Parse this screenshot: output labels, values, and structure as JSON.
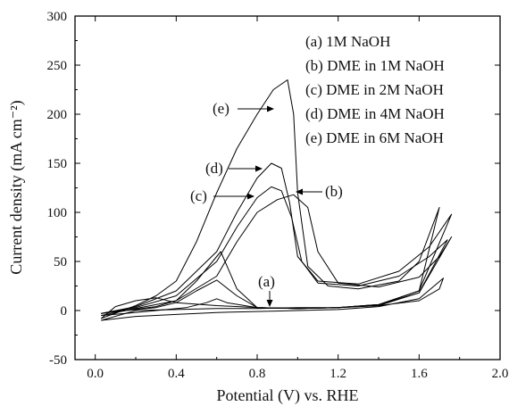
{
  "chart_data": {
    "type": "line",
    "xlabel": "Potential (V) vs. RHE",
    "ylabel": "Current density (mA cm⁻²)",
    "xlim": [
      -0.1,
      2.0
    ],
    "ylim": [
      -50,
      300
    ],
    "xticks": [
      "0.0",
      "0.4",
      "0.8",
      "1.2",
      "1.6",
      "2.0"
    ],
    "xtick_values": [
      0.0,
      0.4,
      0.8,
      1.2,
      1.6,
      2.0
    ],
    "yticks": [
      "-50",
      "0",
      "50",
      "100",
      "150",
      "200",
      "250",
      "300"
    ],
    "ytick_values": [
      -50,
      0,
      50,
      100,
      150,
      200,
      250,
      300
    ],
    "grid": false,
    "legend_position": "top-right",
    "legend": [
      "(a) 1M NaOH",
      "(b) DME in 1M NaOH",
      "(c) DME in 2M NaOH",
      "(d) DME in 4M NaOH",
      "(e) DME in 6M NaOH"
    ],
    "series": [
      {
        "label": "(a)",
        "x": [
          0.03,
          0.2,
          0.4,
          0.6,
          0.8,
          1.0,
          1.2,
          1.4,
          1.6,
          1.7,
          1.72,
          1.6,
          1.4,
          1.2,
          1.0,
          0.8,
          0.6,
          0.4,
          0.2,
          0.03
        ],
        "y": [
          -10,
          0,
          1,
          2,
          2,
          3,
          3,
          5,
          10,
          22,
          33,
          12,
          4,
          1,
          0,
          -1,
          -2,
          -4,
          -6,
          -10
        ]
      },
      {
        "label": "(b)",
        "x": [
          0.03,
          0.2,
          0.4,
          0.6,
          0.7,
          0.8,
          0.9,
          0.98,
          1.05,
          1.1,
          1.2,
          1.4,
          1.6,
          1.7,
          1.76,
          1.6,
          1.4,
          1.2,
          1.0,
          0.8,
          0.65,
          0.6,
          0.55,
          0.45,
          0.3,
          0.15,
          0.03
        ],
        "y": [
          -5,
          2,
          10,
          35,
          70,
          100,
          113,
          118,
          105,
          60,
          28,
          24,
          34,
          55,
          75,
          18,
          6,
          3,
          2,
          3,
          8,
          12,
          8,
          3,
          0,
          -3,
          -5
        ]
      },
      {
        "label": "(c)",
        "x": [
          0.03,
          0.2,
          0.4,
          0.6,
          0.7,
          0.8,
          0.87,
          0.92,
          0.97,
          1.02,
          1.1,
          1.3,
          1.5,
          1.65,
          1.74,
          1.6,
          1.4,
          1.2,
          1.0,
          0.8,
          0.7,
          0.6,
          0.5,
          0.4,
          0.3,
          0.15,
          0.03
        ],
        "y": [
          -3,
          3,
          15,
          50,
          85,
          115,
          126,
          122,
          95,
          50,
          28,
          25,
          35,
          55,
          72,
          18,
          5,
          3,
          2,
          3,
          15,
          31,
          20,
          8,
          3,
          0,
          -3
        ]
      },
      {
        "label": "(d)",
        "x": [
          0.03,
          0.2,
          0.4,
          0.6,
          0.7,
          0.8,
          0.87,
          0.92,
          0.96,
          1.0,
          1.1,
          1.3,
          1.5,
          1.65,
          1.76,
          1.6,
          1.4,
          1.2,
          1.0,
          0.8,
          0.7,
          0.62,
          0.5,
          0.4,
          0.3,
          0.15,
          0.03
        ],
        "y": [
          -3,
          4,
          20,
          60,
          100,
          135,
          150,
          145,
          110,
          55,
          30,
          27,
          40,
          65,
          98,
          20,
          6,
          3,
          2,
          3,
          22,
          60,
          30,
          10,
          4,
          0,
          -3
        ]
      },
      {
        "label": "(e)",
        "x": [
          0.03,
          0.2,
          0.3,
          0.4,
          0.5,
          0.6,
          0.7,
          0.8,
          0.88,
          0.95,
          0.98,
          1.0,
          1.05,
          1.15,
          1.3,
          1.5,
          1.6,
          1.7,
          1.6,
          1.4,
          1.2,
          1.0,
          0.8,
          0.6,
          0.4,
          0.3,
          0.2,
          0.1,
          0.03
        ],
        "y": [
          -8,
          5,
          15,
          30,
          70,
          120,
          165,
          200,
          225,
          235,
          200,
          120,
          45,
          25,
          22,
          30,
          50,
          105,
          20,
          6,
          3,
          2,
          3,
          5,
          8,
          13,
          10,
          4,
          -8
        ]
      }
    ],
    "annotations": [
      "(e)",
      "(d)",
      "(c)",
      "(b)",
      "(a)"
    ]
  }
}
